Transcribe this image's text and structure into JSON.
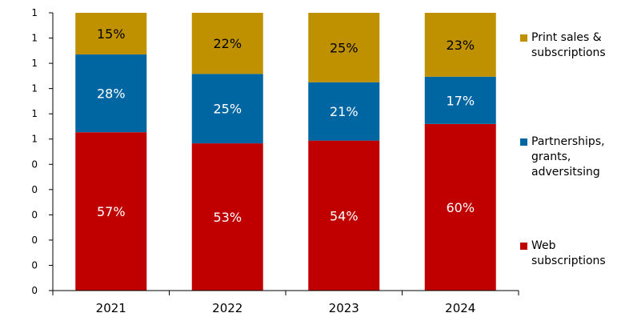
{
  "chart_data": {
    "type": "bar",
    "stacked": true,
    "normalized": true,
    "categories": [
      "2021",
      "2022",
      "2023",
      "2024"
    ],
    "series": [
      {
        "name": "Web subscriptions",
        "legend_label": "Web\nsubscriptions",
        "color": "#c00000",
        "values": [
          57,
          53,
          54,
          60
        ],
        "labels": [
          "57%",
          "53%",
          "54%",
          "60%"
        ]
      },
      {
        "name": "Partnerships, grants, adversitsing",
        "legend_label": "Partnerships,\ngrants,\nadversitsing",
        "color": "#0066a2",
        "values": [
          28,
          25,
          21,
          17
        ],
        "labels": [
          "28%",
          "25%",
          "21%",
          "17%"
        ]
      },
      {
        "name": "Print sales & subscriptions",
        "legend_label": "Print sales &\nsubscriptions",
        "color": "#bf9000",
        "values": [
          15,
          22,
          25,
          23
        ],
        "labels": [
          "15%",
          "22%",
          "25%",
          "23%"
        ]
      }
    ],
    "ylim": [
      0,
      100
    ],
    "ytick_labels": [
      "0",
      "0",
      "0",
      "0",
      "0",
      "0",
      "1",
      "1",
      "1",
      "1",
      "1",
      "1"
    ],
    "grid": false,
    "legend_position": "right"
  }
}
